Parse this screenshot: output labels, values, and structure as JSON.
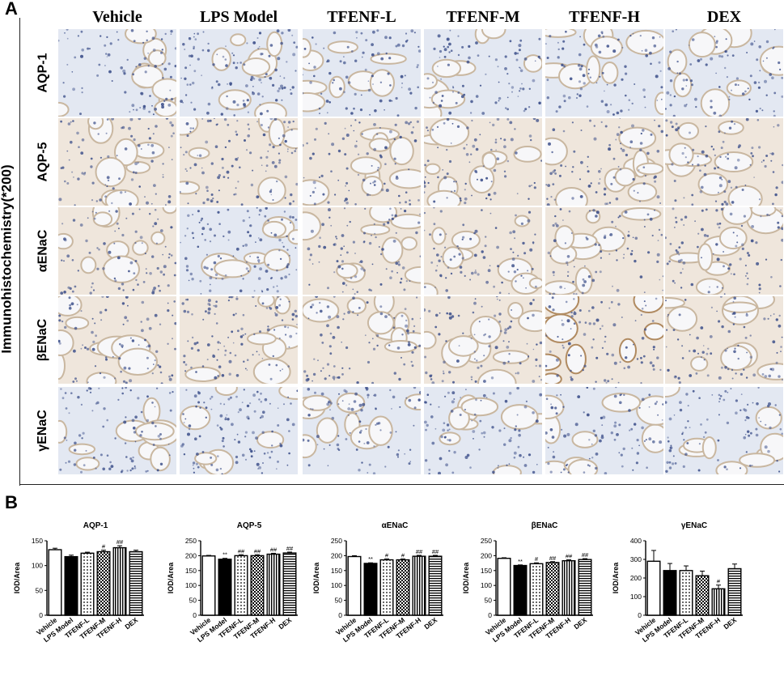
{
  "panel_a": {
    "letter": "A",
    "y_label": "Immunohistochemistry(*200)",
    "columns": [
      "Vehicle",
      "LPS Model",
      "TFENF-L",
      "TFENF-M",
      "TFENF-H",
      "DEX"
    ],
    "rows": [
      "AQP-1",
      "AQP-5",
      "αENaC",
      "βENaC",
      "γENaC"
    ],
    "tissue_colors": {
      "membrane": "#c9b7a0",
      "nuclei": "#3c4f8a",
      "bg_blue": "#e3e8f2",
      "bg_brown": "#efe6dc",
      "lumen": "#f7f7f9"
    }
  },
  "panel_b": {
    "letter": "B",
    "bar_colors": {
      "fill": "#000000",
      "edge": "#000000",
      "open": "#ffffff"
    },
    "patterns": [
      "open",
      "solid",
      "dots",
      "checker",
      "vstripe",
      "hstripe"
    ]
  },
  "chart_data": [
    {
      "type": "bar",
      "title": "AQP-1",
      "ylabel": "IOD/Area",
      "ylim": [
        0,
        150
      ],
      "yticks": [
        0,
        50,
        100,
        150
      ],
      "categories": [
        "Vehicle",
        "LPS Model",
        "TFENF-L",
        "TFENF-M",
        "TFENF-H",
        "DEX"
      ],
      "values": [
        132,
        118,
        125,
        128,
        136,
        128
      ],
      "errors": [
        3,
        3,
        2,
        3,
        4,
        3
      ],
      "annotations": [
        "",
        "",
        "",
        "#",
        "##",
        ""
      ]
    },
    {
      "type": "bar",
      "title": "AQP-5",
      "ylabel": "IOD/Area",
      "ylim": [
        0,
        250
      ],
      "yticks": [
        0,
        50,
        100,
        150,
        200,
        250
      ],
      "categories": [
        "Vehicle",
        "LPS Model",
        "TFENF-L",
        "TFENF-M",
        "TFENF-H",
        "DEX"
      ],
      "values": [
        199,
        188,
        200,
        200,
        205,
        209
      ],
      "errors": [
        2,
        3,
        3,
        3,
        3,
        3
      ],
      "annotations": [
        "",
        "**",
        "##",
        "##",
        "##",
        "##"
      ]
    },
    {
      "type": "bar",
      "title": "αENaC",
      "ylabel": "IOD/Area",
      "ylim": [
        0,
        250
      ],
      "yticks": [
        0,
        50,
        100,
        150,
        200,
        250
      ],
      "categories": [
        "Vehicle",
        "LPS Model",
        "TFENF-L",
        "TFENF-M",
        "TFENF-H",
        "DEX"
      ],
      "values": [
        197,
        174,
        186,
        186,
        198,
        198
      ],
      "errors": [
        3,
        2,
        3,
        3,
        3,
        3
      ],
      "annotations": [
        "",
        "**",
        "#",
        "#",
        "##",
        "##"
      ]
    },
    {
      "type": "bar",
      "title": "βENaC",
      "ylabel": "IOD/Area",
      "ylim": [
        0,
        250
      ],
      "yticks": [
        0,
        50,
        100,
        150,
        200,
        250
      ],
      "categories": [
        "Vehicle",
        "LPS Model",
        "TFENF-L",
        "TFENF-M",
        "TFENF-H",
        "DEX"
      ],
      "values": [
        191,
        167,
        173,
        177,
        183,
        187
      ],
      "errors": [
        2,
        2,
        3,
        3,
        3,
        3
      ],
      "annotations": [
        "",
        "**",
        "#",
        "##",
        "##",
        "##"
      ]
    },
    {
      "type": "bar",
      "title": "γENaC",
      "ylabel": "IOD/Area",
      "ylim": [
        0,
        400
      ],
      "yticks": [
        0,
        100,
        200,
        300,
        400
      ],
      "categories": [
        "Vehicle",
        "LPS Model",
        "TFENF-L",
        "TFENF-M",
        "TFENF-H",
        "DEX"
      ],
      "values": [
        290,
        240,
        240,
        212,
        142,
        250
      ],
      "errors": [
        58,
        38,
        25,
        25,
        20,
        25
      ],
      "annotations": [
        "",
        "",
        "",
        "",
        "#",
        ""
      ]
    }
  ]
}
